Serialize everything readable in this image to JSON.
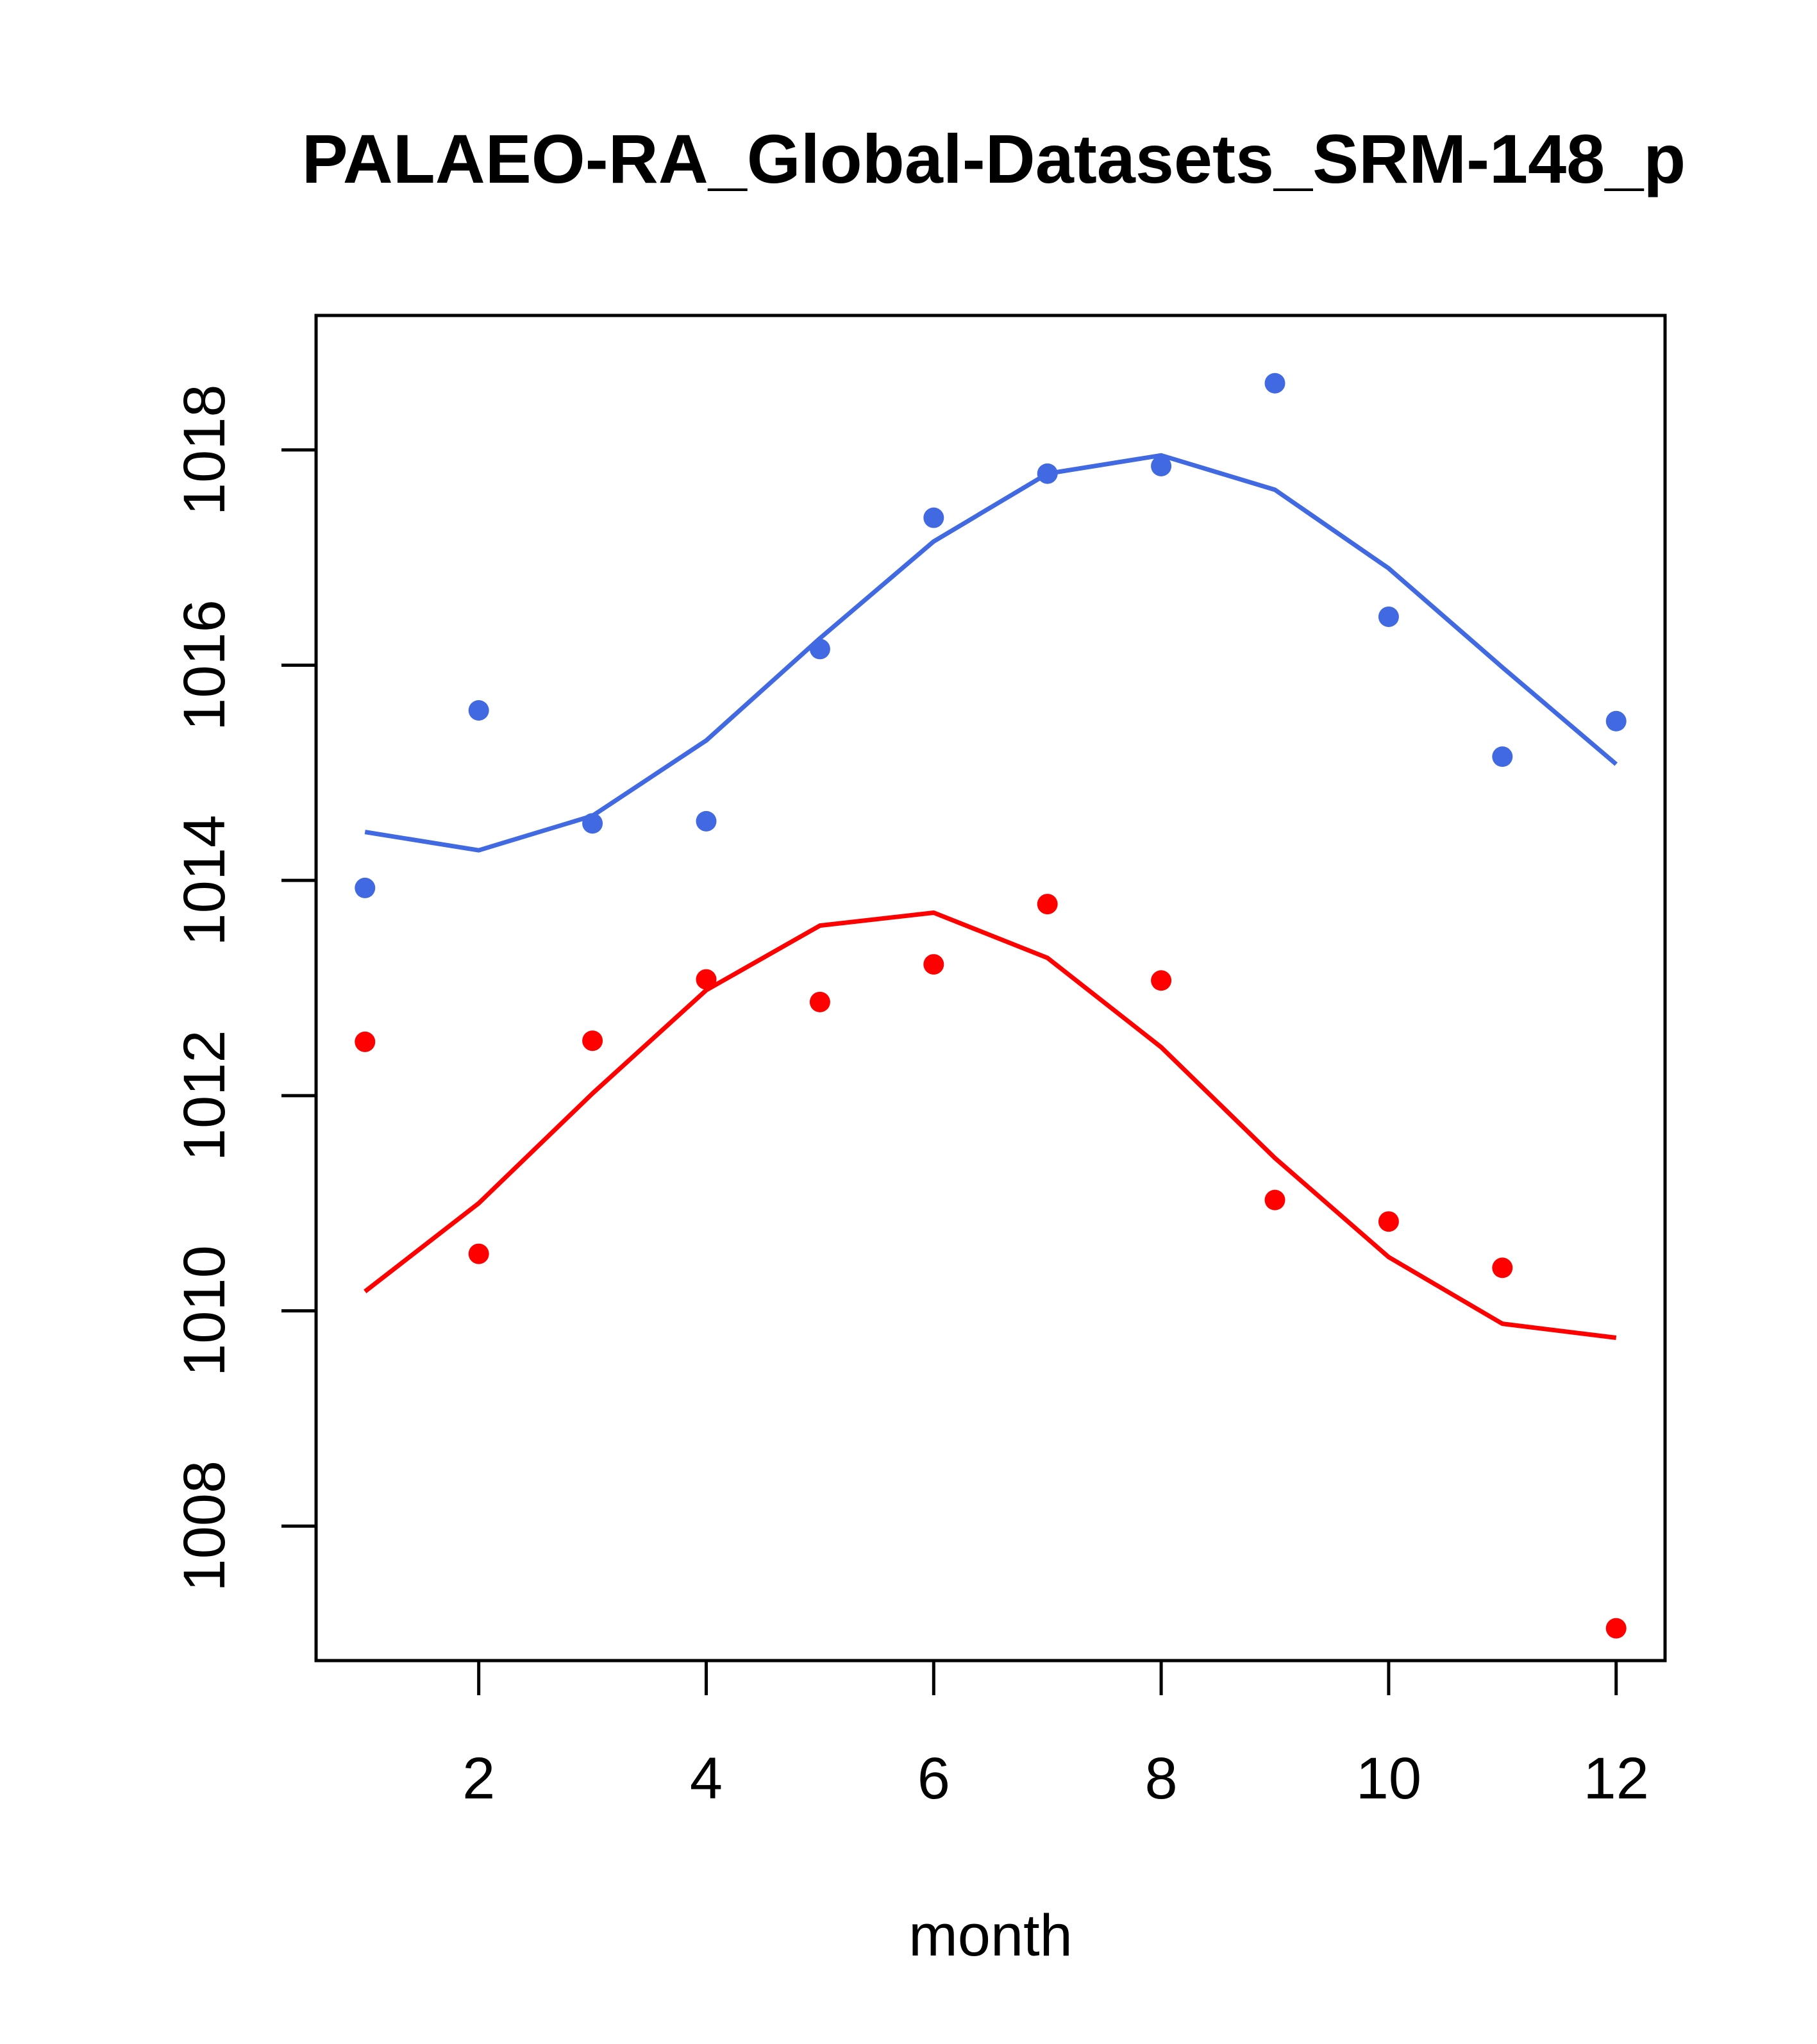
{
  "chart_data": {
    "type": "scatter",
    "title": "PALAEO-RA_Global-Datasets_SRM-148_p",
    "xlabel": "month",
    "ylabel": "",
    "xlim": [
      0.57,
      12.43
    ],
    "ylim": [
      1006.75,
      1019.25
    ],
    "x_ticks": [
      2,
      4,
      6,
      8,
      10,
      12
    ],
    "x_tick_labels": [
      "2",
      "4",
      "6",
      "8",
      "10",
      "12"
    ],
    "y_ticks": [
      1008,
      1010,
      1012,
      1014,
      1016,
      1018
    ],
    "y_tick_labels": [
      "1008",
      "1010",
      "1012",
      "1014",
      "1016",
      "1018"
    ],
    "grid": false,
    "legend": "none",
    "series": [
      {
        "name": "blue",
        "color": "#4169e1",
        "x": [
          1,
          2,
          3,
          4,
          5,
          6,
          7,
          8,
          9,
          10,
          11,
          12
        ],
        "points": [
          1013.93,
          1015.58,
          1014.53,
          1014.55,
          1016.15,
          1017.37,
          1017.78,
          1017.85,
          1018.62,
          1016.45,
          1015.15,
          1015.48
        ],
        "line": [
          1014.45,
          1014.28,
          1014.6,
          1015.3,
          1016.25,
          1017.15,
          1017.78,
          1017.95,
          1017.63,
          1016.9,
          1015.98,
          1015.08
        ]
      },
      {
        "name": "red",
        "color": "#ff0000",
        "x": [
          1,
          2,
          3,
          4,
          5,
          6,
          7,
          8,
          9,
          10,
          11,
          12
        ],
        "points": [
          1012.5,
          1010.53,
          1012.51,
          1013.08,
          1012.87,
          1013.22,
          1013.78,
          1013.07,
          1011.03,
          1010.83,
          1010.4,
          1007.05
        ],
        "line": [
          1010.18,
          1011.0,
          1012.02,
          1012.98,
          1013.58,
          1013.7,
          1013.28,
          1012.45,
          1011.42,
          1010.5,
          1009.88,
          1009.75
        ]
      }
    ]
  }
}
